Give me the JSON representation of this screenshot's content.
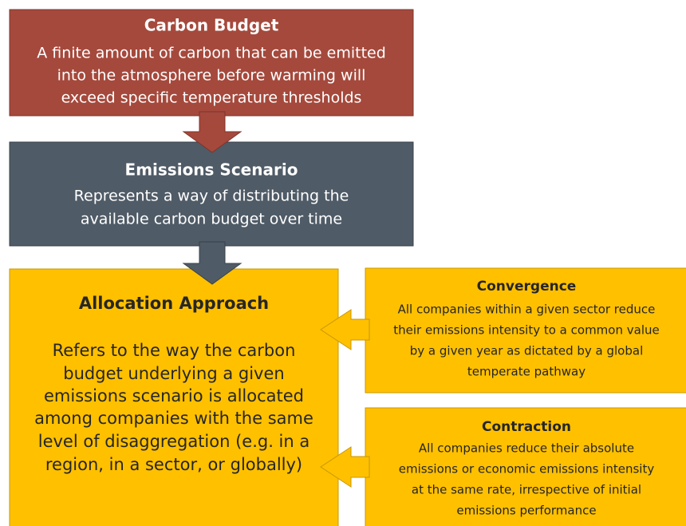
{
  "nodes": [
    {
      "title": "Carbon Budget",
      "lines": [
        "A finite amount of carbon that can be emitted",
        "into the atmosphere before warming will",
        "exceed specific temperature thresholds"
      ]
    },
    {
      "title": "Emissions Scenario",
      "lines": [
        "Represents a way of distributing the",
        "available carbon budget over time"
      ]
    },
    {
      "title": "Allocation Approach",
      "lines": [
        "Refers to the way the carbon",
        "budget underlying a given",
        "emissions scenario is allocated",
        "among companies with the same",
        "level of disaggregation (e.g. in a",
        "region, in a sector, or globally)"
      ]
    },
    {
      "title": "Convergence",
      "lines": [
        "All companies within a given sector reduce",
        "their emissions intensity to a common value",
        "by a given year as dictated by a global",
        "temperate pathway"
      ]
    },
    {
      "title": "Contraction",
      "lines": [
        "All companies reduce their absolute",
        "emissions or economic emissions intensity",
        "at the same rate, irrespective of initial",
        "emissions performance"
      ]
    }
  ]
}
